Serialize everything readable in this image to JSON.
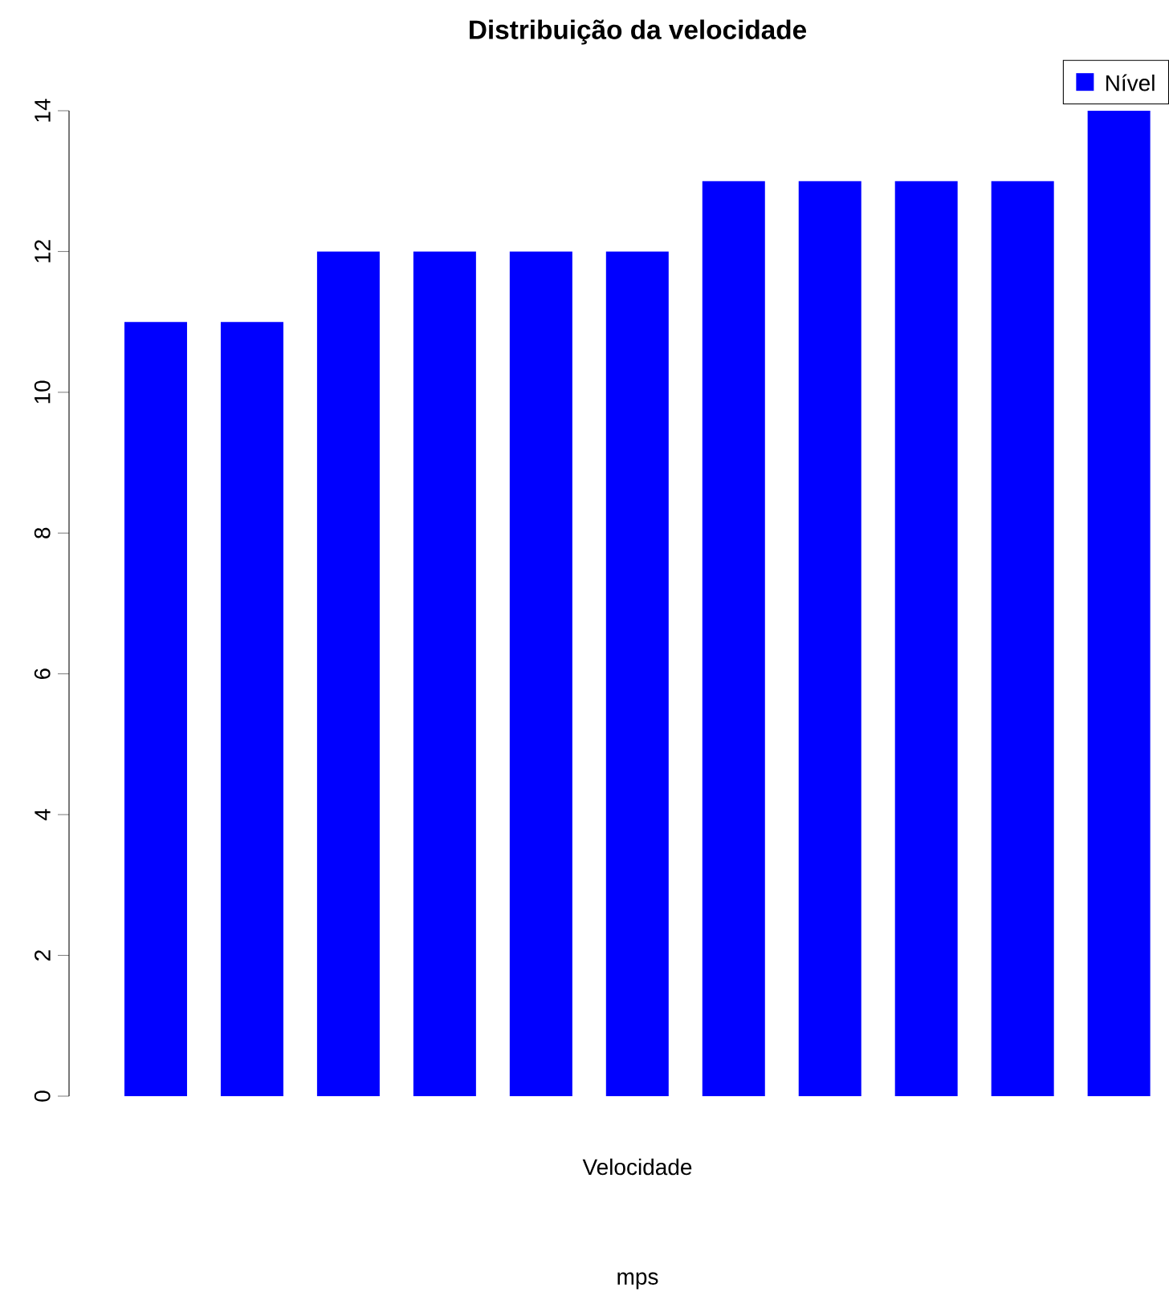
{
  "chart_data": {
    "type": "bar",
    "title": "Distribuição da velocidade",
    "subtitle": "mps",
    "xlabel": "Velocidade",
    "categories": [
      null,
      null,
      null,
      null,
      null,
      null,
      null,
      null,
      null,
      null,
      null
    ],
    "series": [
      {
        "name": "Nível",
        "color": "#0000ff",
        "values": [
          11,
          11,
          12,
          12,
          12,
          12,
          13,
          13,
          13,
          13,
          14
        ]
      }
    ],
    "ylim": [
      0,
      14
    ],
    "yticks": [
      0,
      2,
      4,
      6,
      8,
      10,
      12,
      14
    ],
    "legend": "top right"
  }
}
